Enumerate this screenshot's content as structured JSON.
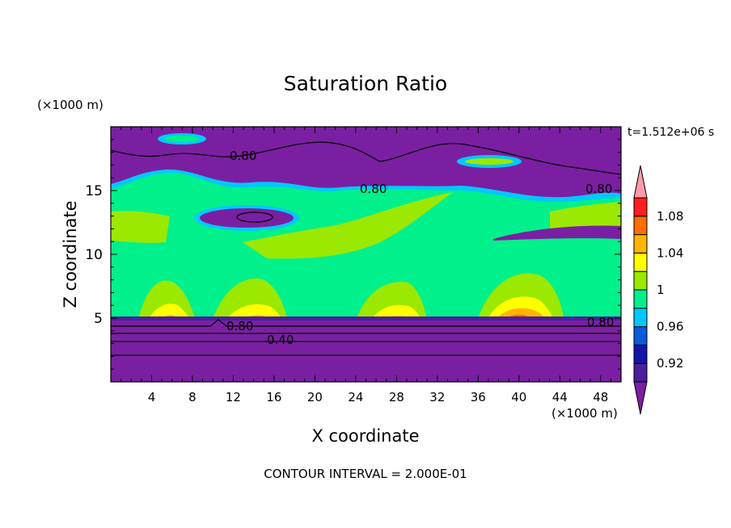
{
  "chart_data": {
    "type": "heatmap",
    "title": "Saturation Ratio",
    "xlabel": "X coordinate",
    "ylabel": "Z coordinate",
    "x_unit": "(×1000 m)",
    "z_unit": "(×1000 m)",
    "time_label": "t=1.512e+06 s",
    "footer": "CONTOUR INTERVAL = 2.000E-01",
    "xlim": [
      0,
      50
    ],
    "zlim": [
      0,
      20
    ],
    "x_ticks": [
      "4",
      "8",
      "12",
      "16",
      "20",
      "24",
      "28",
      "32",
      "36",
      "40",
      "44",
      "48"
    ],
    "z_ticks": [
      "5",
      "10",
      "15"
    ],
    "grid": false,
    "colorbar": {
      "labels": [
        "1.08",
        "1.04",
        "1",
        "0.96",
        "0.92"
      ],
      "levels": [
        0.92,
        0.96,
        1.0,
        1.04,
        1.08
      ],
      "bins": [
        {
          "range": "<0.90",
          "color": "#7a1fa2"
        },
        {
          "range": "0.90-0.92",
          "color": "#4a1e9e"
        },
        {
          "range": "0.92-0.94",
          "color": "#1414a8"
        },
        {
          "range": "0.94-0.96",
          "color": "#0a5adc"
        },
        {
          "range": "0.96-0.98",
          "color": "#00c8ff"
        },
        {
          "range": "0.98-1.00",
          "color": "#00f08c"
        },
        {
          "range": "1.00-1.02",
          "color": "#9be800"
        },
        {
          "range": "1.02-1.04",
          "color": "#ffff00"
        },
        {
          "range": "1.04-1.06",
          "color": "#ffb400"
        },
        {
          "range": "1.06-1.08",
          "color": "#ff6e00"
        },
        {
          "range": "1.08-1.10",
          "color": "#ff1e1e"
        },
        {
          "range": ">1.10",
          "color": "#ff9aa8"
        }
      ]
    },
    "contour_labels": [
      {
        "text": "0.80",
        "x": 14,
        "z": 17.6
      },
      {
        "text": "0.80",
        "x": 25,
        "z": 15.2
      },
      {
        "text": "0.80",
        "x": 47.5,
        "z": 15.1
      },
      {
        "text": "0.80",
        "x": 12.8,
        "z": 4.3
      },
      {
        "text": "0.80",
        "x": 47,
        "z": 4.6
      },
      {
        "text": "0.40",
        "x": 17,
        "z": 3.2
      }
    ]
  }
}
